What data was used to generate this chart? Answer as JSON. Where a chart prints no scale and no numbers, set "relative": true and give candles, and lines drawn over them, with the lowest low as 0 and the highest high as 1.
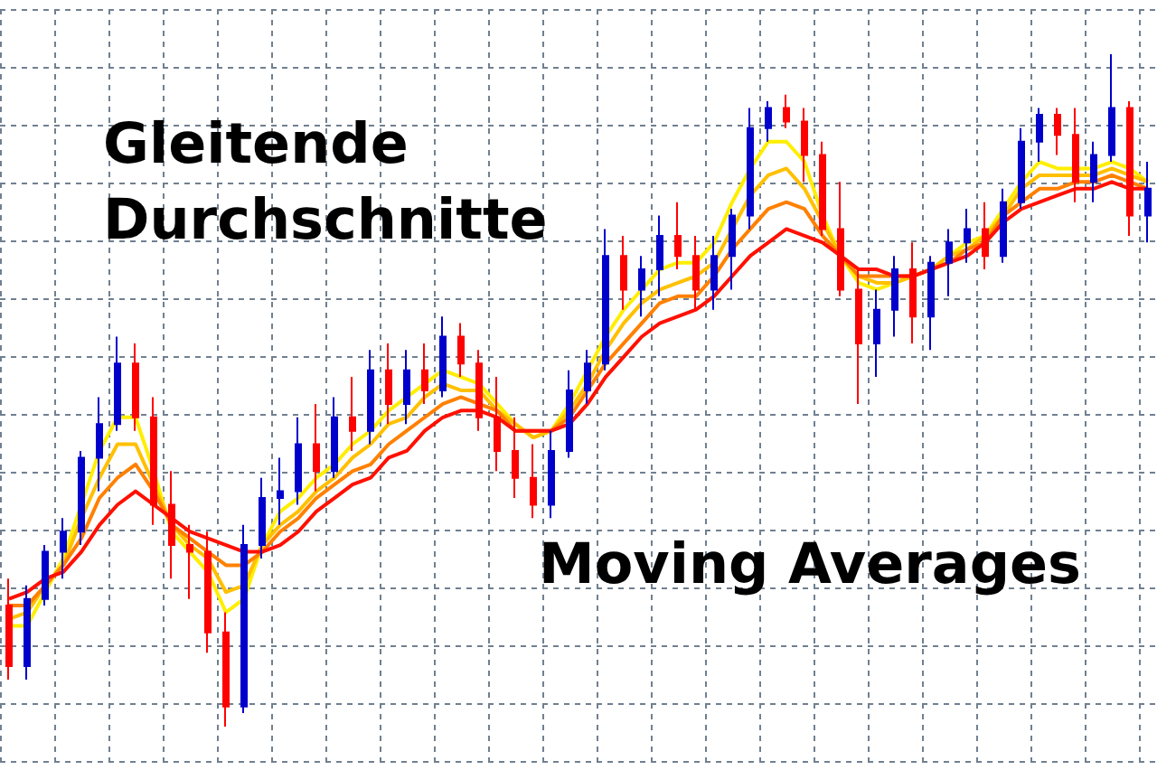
{
  "chart_data": {
    "type": "candlestick",
    "relative": true,
    "title": "Gleitende Durchschnitte",
    "annotations": [
      "Moving Averages"
    ],
    "grid": true,
    "categories": [
      null,
      null,
      null,
      null,
      null,
      null,
      null,
      null,
      null,
      null,
      null,
      null,
      null,
      null,
      null,
      null,
      null,
      null,
      null,
      null,
      null,
      null,
      null,
      null,
      null,
      null,
      null,
      null,
      null,
      null,
      null,
      null,
      null,
      null,
      null,
      null,
      null,
      null,
      null,
      null,
      null,
      null,
      null,
      null,
      null,
      null,
      null,
      null,
      null,
      null,
      null,
      null,
      null,
      null,
      null,
      null,
      null,
      null,
      null,
      null,
      null,
      null,
      null,
      null
    ],
    "ohlc": [
      [
        0.18,
        0.22,
        0.07,
        0.09
      ],
      [
        0.09,
        0.21,
        0.07,
        0.19
      ],
      [
        0.19,
        0.27,
        0.18,
        0.26
      ],
      [
        0.26,
        0.31,
        0.22,
        0.29
      ],
      [
        0.29,
        0.41,
        0.27,
        0.4
      ],
      [
        0.4,
        0.49,
        0.35,
        0.45
      ],
      [
        0.45,
        0.58,
        0.44,
        0.54
      ],
      [
        0.54,
        0.57,
        0.44,
        0.46
      ],
      [
        0.46,
        0.49,
        0.3,
        0.33
      ],
      [
        0.33,
        0.38,
        0.22,
        0.27
      ],
      [
        0.27,
        0.3,
        0.19,
        0.26
      ],
      [
        0.26,
        0.29,
        0.11,
        0.14
      ],
      [
        0.14,
        0.17,
        0,
        0.03
      ],
      [
        0.03,
        0.3,
        0.02,
        0.27
      ],
      [
        0.27,
        0.37,
        0.25,
        0.34
      ],
      [
        0.34,
        0.4,
        0.3,
        0.35
      ],
      [
        0.35,
        0.46,
        0.33,
        0.42
      ],
      [
        0.42,
        0.48,
        0.35,
        0.38
      ],
      [
        0.38,
        0.49,
        0.37,
        0.46
      ],
      [
        0.46,
        0.52,
        0.41,
        0.44
      ],
      [
        0.44,
        0.56,
        0.42,
        0.53
      ],
      [
        0.53,
        0.57,
        0.45,
        0.48
      ],
      [
        0.48,
        0.56,
        0.45,
        0.53
      ],
      [
        0.53,
        0.57,
        0.48,
        0.5
      ],
      [
        0.5,
        0.61,
        0.49,
        0.58
      ],
      [
        0.58,
        0.6,
        0.52,
        0.54
      ],
      [
        0.54,
        0.56,
        0.44,
        0.46
      ],
      [
        0.46,
        0.52,
        0.38,
        0.41
      ],
      [
        0.41,
        0.46,
        0.34,
        0.37
      ],
      [
        0.37,
        0.42,
        0.31,
        0.33
      ],
      [
        0.33,
        0.44,
        0.31,
        0.41
      ],
      [
        0.41,
        0.53,
        0.4,
        0.5
      ],
      [
        0.5,
        0.56,
        0.48,
        0.54
      ],
      [
        0.54,
        0.74,
        0.53,
        0.7
      ],
      [
        0.7,
        0.73,
        0.62,
        0.65
      ],
      [
        0.65,
        0.7,
        0.61,
        0.68
      ],
      [
        0.68,
        0.76,
        0.64,
        0.73
      ],
      [
        0.73,
        0.78,
        0.68,
        0.7
      ],
      [
        0.7,
        0.73,
        0.62,
        0.65
      ],
      [
        0.65,
        0.73,
        0.62,
        0.7
      ],
      [
        0.7,
        0.77,
        0.65,
        0.76
      ],
      [
        0.76,
        0.92,
        0.74,
        0.89
      ],
      [
        0.89,
        0.93,
        0.87,
        0.92
      ],
      [
        0.92,
        0.94,
        0.89,
        0.9
      ],
      [
        0.9,
        0.92,
        0.81,
        0.85
      ],
      [
        0.85,
        0.87,
        0.73,
        0.74
      ],
      [
        0.74,
        0.81,
        0.64,
        0.65
      ],
      [
        0.65,
        0.68,
        0.48,
        0.57
      ],
      [
        0.57,
        0.65,
        0.52,
        0.62
      ],
      [
        0.62,
        0.7,
        0.58,
        0.68
      ],
      [
        0.68,
        0.72,
        0.57,
        0.61
      ],
      [
        0.61,
        0.7,
        0.56,
        0.69
      ],
      [
        0.69,
        0.74,
        0.64,
        0.72
      ],
      [
        0.72,
        0.77,
        0.69,
        0.74
      ],
      [
        0.74,
        0.78,
        0.68,
        0.7
      ],
      [
        0.7,
        0.8,
        0.69,
        0.78
      ],
      [
        0.78,
        0.89,
        0.77,
        0.87
      ],
      [
        0.87,
        0.92,
        0.84,
        0.91
      ],
      [
        0.91,
        0.92,
        0.85,
        0.88
      ],
      [
        0.88,
        0.92,
        0.78,
        0.81
      ],
      [
        0.81,
        0.87,
        0.78,
        0.85
      ],
      [
        0.85,
        1,
        0.84,
        0.92
      ],
      [
        0.92,
        0.93,
        0.73,
        0.76
      ],
      [
        0.76,
        0.84,
        0.72,
        0.8
      ]
    ],
    "colors": [
      "#ff0000",
      "#0000cc",
      "#0000cc",
      "#0000cc",
      "#0000cc",
      "#0000cc",
      "#0000cc",
      "#ff0000",
      "#ff0000",
      "#ff0000",
      "#ff0000",
      "#ff0000",
      "#ff0000",
      "#0000cc",
      "#0000cc",
      "#0000cc",
      "#0000cc",
      "#ff0000",
      "#0000cc",
      "#ff0000",
      "#0000cc",
      "#ff0000",
      "#0000cc",
      "#ff0000",
      "#0000cc",
      "#ff0000",
      "#ff0000",
      "#ff0000",
      "#ff0000",
      "#ff0000",
      "#0000cc",
      "#0000cc",
      "#0000cc",
      "#0000cc",
      "#ff0000",
      "#0000cc",
      "#0000cc",
      "#ff0000",
      "#ff0000",
      "#0000cc",
      "#0000cc",
      "#0000cc",
      "#0000cc",
      "#ff0000",
      "#ff0000",
      "#ff0000",
      "#ff0000",
      "#ff0000",
      "#0000cc",
      "#0000cc",
      "#ff0000",
      "#0000cc",
      "#0000cc",
      "#0000cc",
      "#ff0000",
      "#0000cc",
      "#0000cc",
      "#0000cc",
      "#ff0000",
      "#ff0000",
      "#0000cc",
      "#0000cc",
      "#ff0000",
      "#0000cc"
    ],
    "series": [
      {
        "type": "line",
        "color": "#ffee00",
        "values": [
          0.15,
          0.15,
          0.2,
          0.25,
          0.33,
          0.41,
          0.46,
          0.46,
          0.38,
          0.29,
          0.26,
          0.23,
          0.17,
          0.19,
          0.27,
          0.32,
          0.34,
          0.37,
          0.39,
          0.42,
          0.44,
          0.47,
          0.49,
          0.51,
          0.53,
          0.52,
          0.51,
          0.48,
          0.45,
          0.43,
          0.44,
          0.48,
          0.53,
          0.58,
          0.62,
          0.65,
          0.68,
          0.69,
          0.69,
          0.72,
          0.78,
          0.83,
          0.87,
          0.87,
          0.84,
          0.76,
          0.7,
          0.66,
          0.65,
          0.66,
          0.67,
          0.68,
          0.7,
          0.72,
          0.73,
          0.77,
          0.81,
          0.84,
          0.83,
          0.83,
          0.83,
          0.84,
          0.83,
          0.81
        ]
      },
      {
        "type": "line",
        "color": "#ffc000",
        "values": [
          0.16,
          0.17,
          0.21,
          0.24,
          0.31,
          0.37,
          0.42,
          0.42,
          0.36,
          0.3,
          0.27,
          0.25,
          0.2,
          0.21,
          0.27,
          0.3,
          0.32,
          0.35,
          0.37,
          0.4,
          0.42,
          0.45,
          0.46,
          0.49,
          0.51,
          0.5,
          0.5,
          0.47,
          0.45,
          0.43,
          0.44,
          0.47,
          0.51,
          0.56,
          0.6,
          0.63,
          0.65,
          0.66,
          0.67,
          0.69,
          0.74,
          0.79,
          0.82,
          0.83,
          0.8,
          0.75,
          0.7,
          0.67,
          0.66,
          0.66,
          0.67,
          0.68,
          0.7,
          0.71,
          0.73,
          0.76,
          0.8,
          0.82,
          0.82,
          0.82,
          0.82,
          0.83,
          0.82,
          0.81
        ]
      },
      {
        "type": "line",
        "color": "#ff8000",
        "values": [
          0.18,
          0.18,
          0.21,
          0.24,
          0.28,
          0.34,
          0.37,
          0.39,
          0.35,
          0.3,
          0.28,
          0.26,
          0.24,
          0.24,
          0.26,
          0.29,
          0.31,
          0.34,
          0.36,
          0.38,
          0.39,
          0.42,
          0.44,
          0.46,
          0.48,
          0.49,
          0.48,
          0.47,
          0.44,
          0.44,
          0.44,
          0.46,
          0.5,
          0.54,
          0.57,
          0.6,
          0.63,
          0.64,
          0.64,
          0.67,
          0.71,
          0.74,
          0.77,
          0.78,
          0.77,
          0.73,
          0.7,
          0.67,
          0.67,
          0.67,
          0.67,
          0.68,
          0.69,
          0.71,
          0.72,
          0.76,
          0.78,
          0.8,
          0.8,
          0.81,
          0.81,
          0.82,
          0.81,
          0.8
        ]
      },
      {
        "type": "line",
        "color": "#ff1000",
        "values": [
          0.19,
          0.2,
          0.22,
          0.23,
          0.26,
          0.3,
          0.33,
          0.35,
          0.33,
          0.31,
          0.29,
          0.28,
          0.27,
          0.26,
          0.26,
          0.27,
          0.29,
          0.32,
          0.34,
          0.36,
          0.37,
          0.4,
          0.41,
          0.44,
          0.46,
          0.47,
          0.47,
          0.46,
          0.44,
          0.44,
          0.44,
          0.45,
          0.48,
          0.52,
          0.55,
          0.58,
          0.6,
          0.61,
          0.62,
          0.64,
          0.67,
          0.7,
          0.72,
          0.74,
          0.73,
          0.72,
          0.7,
          0.68,
          0.68,
          0.67,
          0.67,
          0.68,
          0.69,
          0.7,
          0.72,
          0.75,
          0.77,
          0.78,
          0.79,
          0.8,
          0.8,
          0.81,
          0.8,
          0.8
        ]
      }
    ]
  }
}
